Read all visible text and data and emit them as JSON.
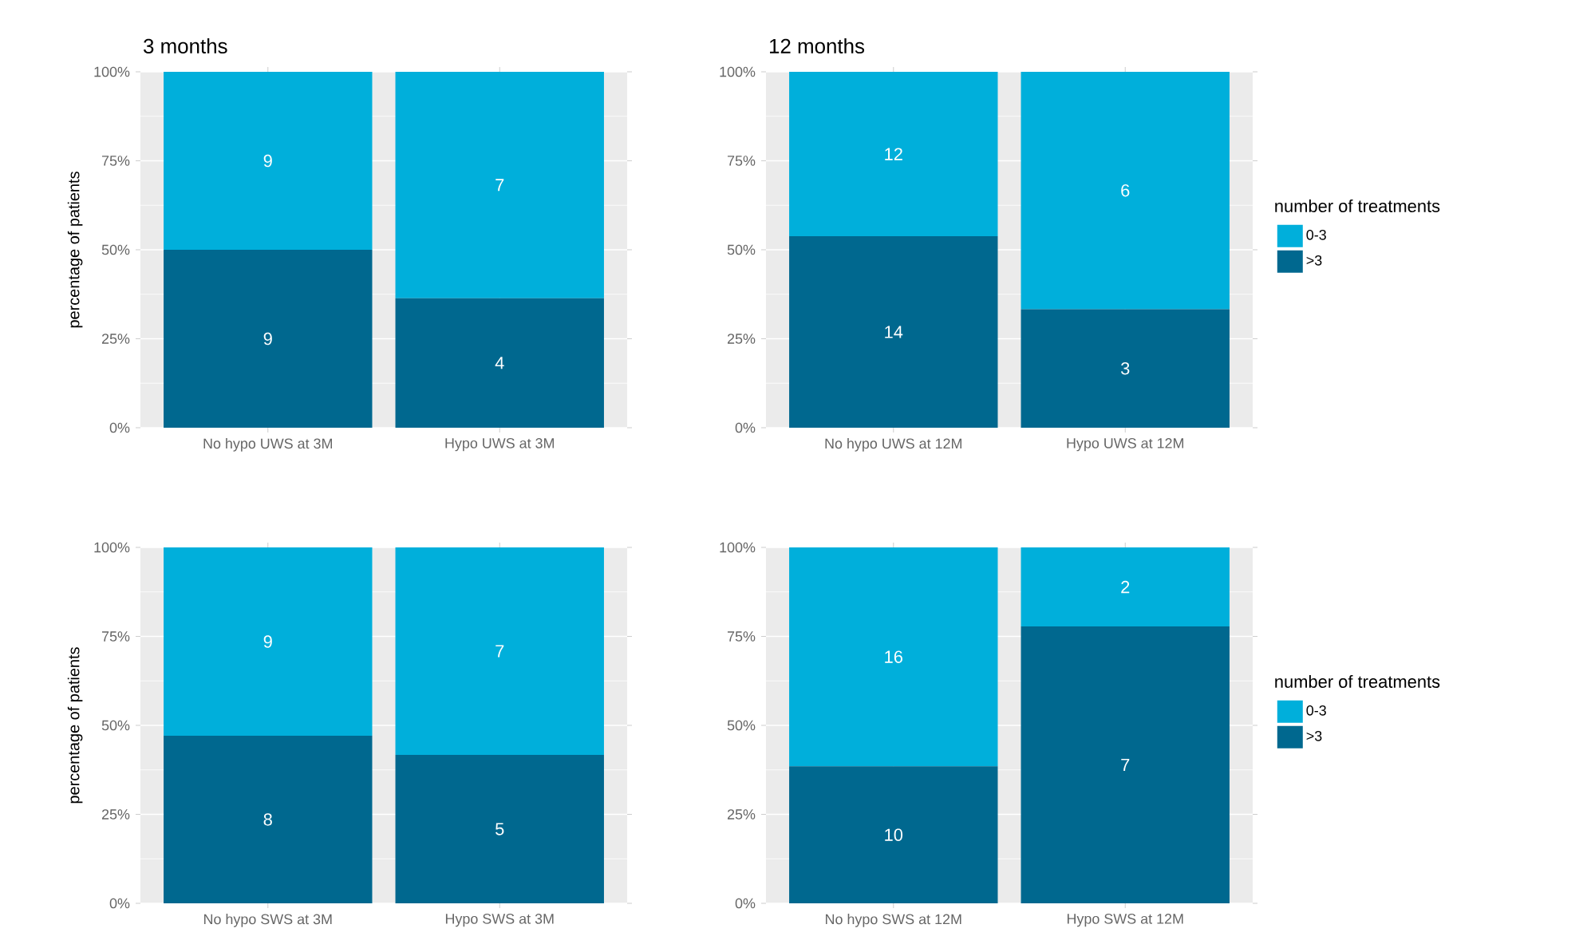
{
  "chart_data": [
    {
      "type": "bar",
      "stacked": true,
      "title": "3 months",
      "ylabel": "percentage of patients",
      "categories": [
        "No hypo UWS at 3M",
        "Hypo UWS at 3M"
      ],
      "ylim": [
        0,
        100
      ],
      "yticks": [
        {
          "value": 0,
          "label": "0%"
        },
        {
          "value": 25,
          "label": "25%"
        },
        {
          "value": 50,
          "label": "50%"
        },
        {
          "value": 75,
          "label": "75%"
        },
        {
          "value": 100,
          "label": "100%"
        }
      ],
      "grid": true,
      "legend": false,
      "series": [
        {
          "color": "#00688f",
          "values": [
            50,
            36.4
          ]
        },
        {
          "color": "#00afdb",
          "values": [
            50,
            63.6
          ]
        }
      ],
      "annotations": [
        "9",
        "4",
        "9",
        "7"
      ]
    },
    {
      "type": "bar",
      "stacked": true,
      "title": "12 months",
      "legend_title": "number of treatments",
      "categories": [
        "No hypo UWS at 12M",
        "Hypo UWS at 12M"
      ],
      "ylim": [
        0,
        100
      ],
      "yticks": [
        {
          "value": 0,
          "label": "0%"
        },
        {
          "value": 25,
          "label": "25%"
        },
        {
          "value": 50,
          "label": "50%"
        },
        {
          "value": 75,
          "label": "75%"
        },
        {
          "value": 100,
          "label": "100%"
        }
      ],
      "grid": true,
      "legend": "right",
      "series": [
        {
          "name": ">3",
          "color": "#00688f",
          "values": [
            53.8,
            33.3
          ]
        },
        {
          "name": "0-3",
          "color": "#00afdb",
          "values": [
            46.2,
            66.7
          ]
        }
      ],
      "annotations": [
        "14",
        "3",
        "12",
        "6"
      ]
    },
    {
      "type": "bar",
      "stacked": true,
      "ylabel": "percentage of patients",
      "categories": [
        "No hypo SWS at 3M",
        "Hypo SWS at 3M"
      ],
      "ylim": [
        0,
        100
      ],
      "yticks": [
        {
          "value": 0,
          "label": "0%"
        },
        {
          "value": 25,
          "label": "25%"
        },
        {
          "value": 50,
          "label": "50%"
        },
        {
          "value": 75,
          "label": "75%"
        },
        {
          "value": 100,
          "label": "100%"
        }
      ],
      "grid": true,
      "legend": false,
      "series": [
        {
          "color": "#00688f",
          "values": [
            47.1,
            41.7
          ]
        },
        {
          "color": "#00afdb",
          "values": [
            52.9,
            58.3
          ]
        }
      ],
      "annotations": [
        "8",
        "5",
        "9",
        "7"
      ]
    },
    {
      "type": "bar",
      "stacked": true,
      "legend_title": "number of treatments",
      "categories": [
        "No hypo SWS at 12M",
        "Hypo SWS at 12M"
      ],
      "ylim": [
        0,
        100
      ],
      "yticks": [
        {
          "value": 0,
          "label": "0%"
        },
        {
          "value": 25,
          "label": "25%"
        },
        {
          "value": 50,
          "label": "50%"
        },
        {
          "value": 75,
          "label": "75%"
        },
        {
          "value": 100,
          "label": "100%"
        }
      ],
      "grid": true,
      "legend": "right",
      "series": [
        {
          "name": ">3",
          "color": "#00688f",
          "values": [
            38.5,
            77.8
          ]
        },
        {
          "name": "0-3",
          "color": "#00afdb",
          "values": [
            61.5,
            22.2
          ]
        }
      ],
      "annotations": [
        "10",
        "7",
        "16",
        "2"
      ]
    }
  ]
}
